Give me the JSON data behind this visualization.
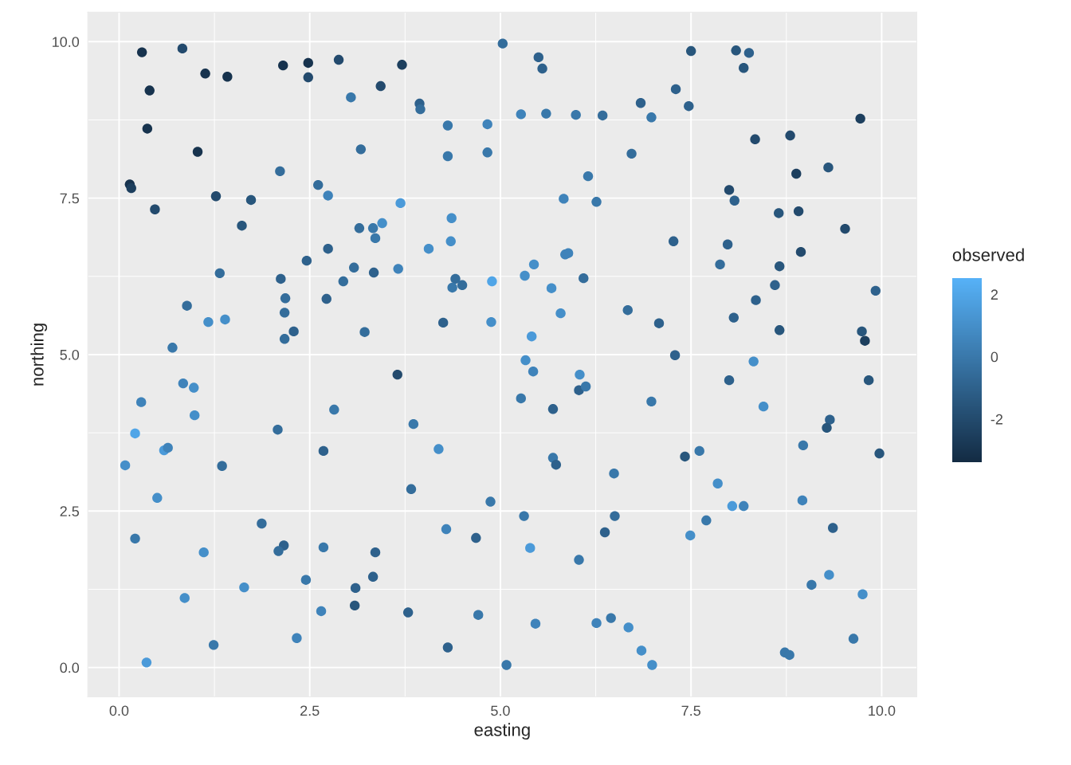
{
  "chart_data": {
    "type": "scatter",
    "xlabel": "easting",
    "ylabel": "northing",
    "clabel": "observed",
    "xlim": [
      -0.41,
      10.46
    ],
    "ylim": [
      -0.47,
      10.47
    ],
    "xticks": [
      {
        "value": 0,
        "label": "0.0"
      },
      {
        "value": 2.5,
        "label": "2.5"
      },
      {
        "value": 5,
        "label": "5.0"
      },
      {
        "value": 7.5,
        "label": "7.5"
      },
      {
        "value": 10,
        "label": "10.0"
      }
    ],
    "yticks": [
      {
        "value": 0,
        "label": "0.0"
      },
      {
        "value": 2.5,
        "label": "2.5"
      },
      {
        "value": 5,
        "label": "5.0"
      },
      {
        "value": 7.5,
        "label": "7.5"
      },
      {
        "value": 10,
        "label": "10.0"
      }
    ],
    "clim": [
      -3.38,
      2.51
    ],
    "cticks": [
      {
        "value": -2,
        "label": "-2"
      },
      {
        "value": 0,
        "label": "0"
      },
      {
        "value": 2,
        "label": "2"
      }
    ],
    "grid": true,
    "marker": "circle",
    "x": [
      0.3,
      0.83,
      1.13,
      1.42,
      0.4,
      0.37,
      1.03,
      0.14,
      0.16,
      0.47,
      1.27,
      1.73,
      1.61,
      2.15,
      2.48,
      2.48,
      2.88,
      3.04,
      3.17,
      2.11,
      2.61,
      2.74,
      3.15,
      2.74,
      3.08,
      2.94,
      2.72,
      2.18,
      2.17,
      2.29,
      2.17,
      2.46,
      2.12,
      1.32,
      0.89,
      1.17,
      1.39,
      0.7,
      3.22,
      5.03,
      5.5,
      5.55,
      3.71,
      3.43,
      3.94,
      3.95,
      4.31,
      4.83,
      4.31,
      4.83,
      5.27,
      5.6,
      5.99,
      6.34,
      6.84,
      6.72,
      6.15,
      5.83,
      6.26,
      3.69,
      3.45,
      3.33,
      3.36,
      4.36,
      4.35,
      4.06,
      3.66,
      3.34,
      4.41,
      4.37,
      4.5,
      4.89,
      5.32,
      5.44,
      5.85,
      5.89,
      6.09,
      5.67,
      5.79,
      6.67,
      4.25,
      4.88,
      5.41,
      7.5,
      8.09,
      8.26,
      8.19,
      7.3,
      6.98,
      7.47,
      9.72,
      8.34,
      8.8,
      9.3,
      8.88,
      8.0,
      8.07,
      8.65,
      8.91,
      9.52,
      7.27,
      7.98,
      7.88,
      8.66,
      8.94,
      8.6,
      8.35,
      9.92,
      8.06,
      8.66,
      9.74,
      9.78,
      7.08,
      7.29,
      0.84,
      0.98,
      0.29,
      0.99,
      2.82,
      2.08,
      0.21,
      0.59,
      0.64,
      0.08,
      1.35,
      2.68,
      0.5,
      1.87,
      0.21,
      1.11,
      2.16,
      2.09,
      2.68,
      2.45,
      3.1,
      3.09,
      1.64,
      0.86,
      2.65,
      2.33,
      1.24,
      0.36,
      5.33,
      5.43,
      6.04,
      6.03,
      6.12,
      3.65,
      5.27,
      5.69,
      3.86,
      4.19,
      5.69,
      5.73,
      6.49,
      3.83,
      4.87,
      5.31,
      6.5,
      4.29,
      4.68,
      5.39,
      6.37,
      6.03,
      3.36,
      3.33,
      3.79,
      4.71,
      5.46,
      6.26,
      6.45,
      6.68,
      4.31,
      5.08,
      8.32,
      8.0,
      9.83,
      6.98,
      8.45,
      9.32,
      9.28,
      8.97,
      9.97,
      7.42,
      7.61,
      7.85,
      8.04,
      8.19,
      8.96,
      7.7,
      7.49,
      9.36,
      9.31,
      9.08,
      9.75,
      6.85,
      6.99,
      8.73,
      8.79,
      9.63
    ],
    "values": [
      9.83,
      9.89,
      9.49,
      9.44,
      9.22,
      8.61,
      8.24,
      7.72,
      7.66,
      7.32,
      7.53,
      7.47,
      7.06,
      9.62,
      9.66,
      9.43,
      9.71,
      9.11,
      8.28,
      7.93,
      7.71,
      7.54,
      7.02,
      6.69,
      6.39,
      6.17,
      5.89,
      5.9,
      5.67,
      5.37,
      5.25,
      6.5,
      6.21,
      6.3,
      5.78,
      5.52,
      5.56,
      5.11,
      5.36,
      9.97,
      9.75,
      9.57,
      9.63,
      9.29,
      9.01,
      8.92,
      8.66,
      8.68,
      8.17,
      8.23,
      8.84,
      8.85,
      8.83,
      8.82,
      9.02,
      8.21,
      7.85,
      7.49,
      7.44,
      7.42,
      7.1,
      7.02,
      6.86,
      7.18,
      6.81,
      6.69,
      6.37,
      6.31,
      6.21,
      6.07,
      6.11,
      6.17,
      6.26,
      6.44,
      6.6,
      6.62,
      6.22,
      6.06,
      5.66,
      5.71,
      5.51,
      5.52,
      5.29,
      9.85,
      9.86,
      9.82,
      9.58,
      9.24,
      8.79,
      8.97,
      8.77,
      8.44,
      8.5,
      7.99,
      7.89,
      7.63,
      7.46,
      7.26,
      7.29,
      7.01,
      6.81,
      6.76,
      6.44,
      6.41,
      6.64,
      6.11,
      5.87,
      6.02,
      5.59,
      5.39,
      5.37,
      5.22,
      5.5,
      4.99,
      4.54,
      4.47,
      4.24,
      4.03,
      4.12,
      3.8,
      3.74,
      3.47,
      3.51,
      3.23,
      3.22,
      3.46,
      2.71,
      2.3,
      2.06,
      1.84,
      1.95,
      1.86,
      1.92,
      1.4,
      1.27,
      0.99,
      1.28,
      1.11,
      0.9,
      0.47,
      0.36,
      0.08,
      4.91,
      4.73,
      4.68,
      4.43,
      4.49,
      4.68,
      4.3,
      4.13,
      3.89,
      3.49,
      3.35,
      3.24,
      3.1,
      2.85,
      2.65,
      2.42,
      2.42,
      2.21,
      2.07,
      1.91,
      2.16,
      1.72,
      1.84,
      1.45,
      0.88,
      0.84,
      0.7,
      0.71,
      0.79,
      0.64,
      0.32,
      0.04,
      4.89,
      4.59,
      4.59,
      4.25,
      4.17,
      3.96,
      3.83,
      3.55,
      3.42,
      3.37,
      3.46,
      2.94,
      2.58,
      2.58,
      2.67,
      2.35,
      2.11,
      2.23,
      1.48,
      1.32,
      1.17,
      0.27,
      0.04,
      0.24,
      0.2,
      0.46
    ],
    "cvalues": [
      -3,
      -2,
      -3,
      -3,
      -3,
      -3,
      -3,
      -3,
      -2.5,
      -2,
      -2,
      -1.5,
      -1.5,
      -3,
      -3,
      -2,
      -2,
      0,
      -0.5,
      -0.5,
      -0.5,
      0.5,
      -0.5,
      -1,
      -0.5,
      -0.5,
      -1,
      -0.5,
      -0.5,
      -1,
      -0.5,
      -1,
      -1,
      -0.5,
      -0.5,
      1,
      1,
      0,
      -0.5,
      -0.5,
      -1,
      -1,
      -2.5,
      -2,
      -1,
      -0.5,
      0,
      0.5,
      0,
      0,
      0.5,
      0,
      0,
      -0.5,
      -1,
      -0.5,
      0,
      0.5,
      0,
      1.5,
      1,
      0,
      0,
      1,
      1,
      1,
      0.5,
      -1,
      -0.5,
      0,
      -0.5,
      2,
      1,
      1,
      0.5,
      0.5,
      -0.5,
      1,
      1,
      -0.5,
      -1,
      1,
      1.5,
      -1.5,
      -1.5,
      -1,
      -1.5,
      -1,
      0,
      -1,
      -2.5,
      -2,
      -2,
      -1.5,
      -2.5,
      -2,
      -1,
      -1.5,
      -2,
      -2,
      -1,
      -1,
      -0.5,
      -1.5,
      -2,
      -1,
      -1,
      -1,
      -1,
      -1.5,
      -1.5,
      -2.5,
      -1,
      -1,
      0.5,
      1,
      0.5,
      1,
      0,
      -0.5,
      2,
      1.5,
      0.5,
      1,
      -0.5,
      -1,
      1,
      -0.5,
      0,
      1,
      -1,
      -0.5,
      0,
      0,
      -1,
      -1.5,
      1,
      1,
      0.5,
      0.5,
      0,
      1.5,
      1,
      0.5,
      1,
      -1,
      0,
      -2,
      0,
      -1,
      0,
      1,
      0,
      -1,
      0,
      -0.5,
      0,
      0,
      -0.5,
      0.5,
      -1,
      1.5,
      -1,
      0,
      -1,
      -1,
      -1,
      0,
      0.5,
      0.5,
      0,
      1,
      -1,
      0,
      1,
      -1,
      -1.5,
      0,
      1,
      -1,
      -1.5,
      0,
      -1.5,
      -1.5,
      0,
      1,
      1.5,
      0.5,
      0.5,
      0,
      1,
      -1,
      1,
      0,
      1,
      1,
      1,
      0,
      0,
      0
    ]
  }
}
